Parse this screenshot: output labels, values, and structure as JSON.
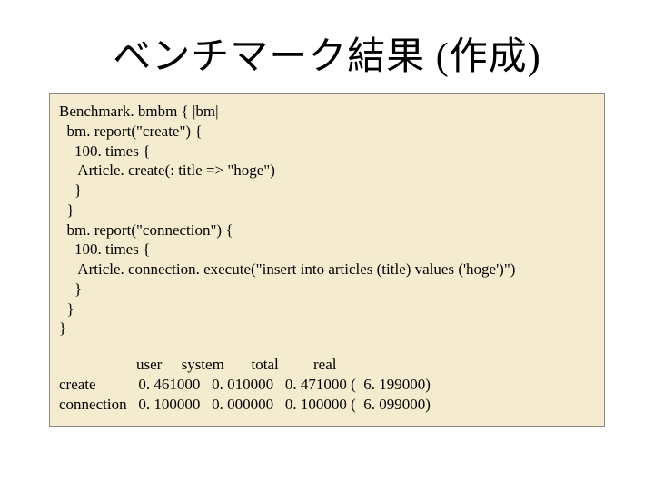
{
  "title": "ベンチマーク結果 (作成)",
  "code": {
    "l1": "Benchmark. bmbm { |bm|",
    "l2": "  bm. report(\"create\") {",
    "l3": "    100. times {",
    "l4": "     Article. create(: title => \"hoge\")",
    "l5": "    }",
    "l6": "  }",
    "l7": "  bm. report(\"connection\") {",
    "l8": "    100. times {",
    "l9": "     Article. connection. execute(\"insert into articles (title) values ('hoge')\")",
    "l10": "    }",
    "l11": "  }",
    "l12": "}"
  },
  "results": {
    "header": "                    user     system       total         real",
    "r1": "create           0. 461000   0. 010000   0. 471000 (  6. 199000)",
    "r2": "connection   0. 100000   0. 000000   0. 100000 (  6. 099000)"
  },
  "colors": {
    "box_bg": "#f5eccf",
    "text": "#000000",
    "page_bg": "#ffffff"
  }
}
